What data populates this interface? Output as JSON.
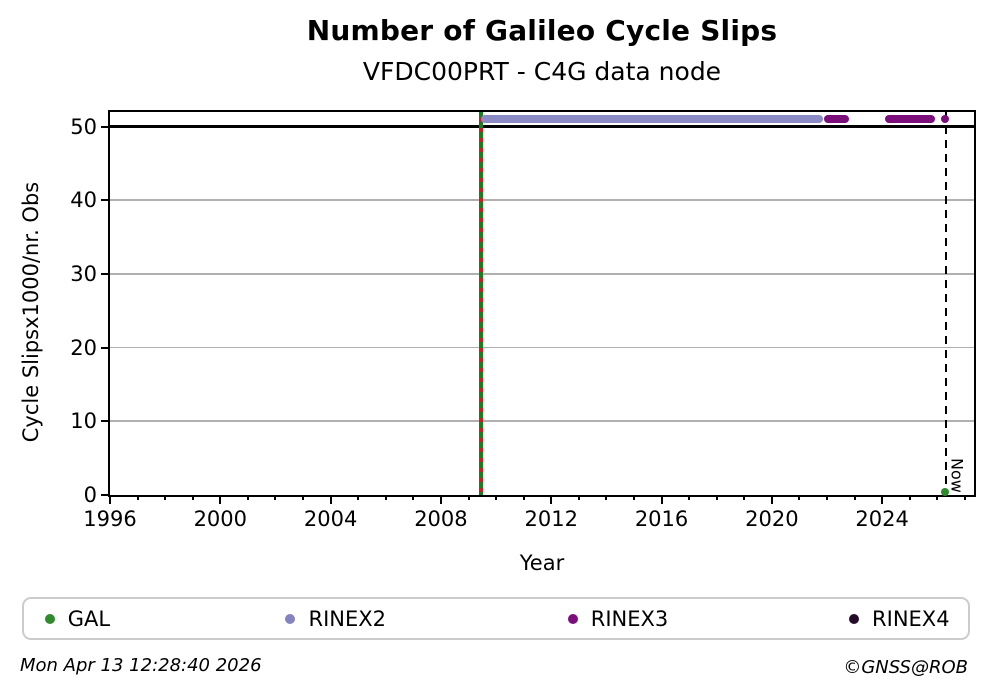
{
  "title": "Number of Galileo Cycle Slips",
  "subtitle": "VFDC00PRT - C4G data node",
  "footer": {
    "timestamp": "Mon Apr 13 12:28:40 2026",
    "credit": "©GNSS@ROB"
  },
  "legend": {
    "items": [
      {
        "label": "GAL",
        "color": "#2e8b2e"
      },
      {
        "label": "RINEX2",
        "color": "#8383c0"
      },
      {
        "label": "RINEX3",
        "color": "#7b0e7b"
      },
      {
        "label": "RINEX4",
        "color": "#260b29"
      }
    ]
  },
  "chart_data": {
    "type": "scatter",
    "title": "Number of Galileo Cycle Slips",
    "subtitle": "VFDC00PRT - C4G data node",
    "xlabel": "Year",
    "ylabel": "Cycle Slipsx1000/nr. Obs",
    "xlim": [
      1996,
      2027.33
    ],
    "ylim": [
      0,
      52
    ],
    "x_major_ticks": [
      1996,
      2000,
      2004,
      2008,
      2012,
      2016,
      2020,
      2024
    ],
    "x_minor_tick_step": 1,
    "y_ticks": [
      0,
      10,
      20,
      30,
      40,
      50
    ],
    "y_gridlines": [
      10,
      20,
      30,
      40
    ],
    "grid": "horizontal",
    "threshold_line": {
      "y": 50,
      "color": "#000000"
    },
    "event_line": {
      "x": 2009.47,
      "colors": [
        "#1a7e1a",
        "#ce1f1f"
      ],
      "style": "green-solid-with-red-dashes"
    },
    "now_line": {
      "x": 2026.3,
      "label": "Now",
      "style": "dashed",
      "color": "#000000"
    },
    "series": [
      {
        "name": "GAL",
        "color": "#2e8b2e",
        "points": [
          [
            2026.28,
            0.4
          ]
        ],
        "segments": [],
        "value": null
      },
      {
        "name": "RINEX2",
        "color": "#8a8ac4",
        "value": 51,
        "points": [],
        "segments": [
          [
            2009.47,
            2021.85
          ]
        ]
      },
      {
        "name": "RINEX3",
        "color": "#7b0e7b",
        "value": 51,
        "points": [
          [
            2026.28,
            51
          ]
        ],
        "segments": [
          [
            2021.9,
            2022.8
          ],
          [
            2024.1,
            2025.9
          ]
        ]
      },
      {
        "name": "RINEX4",
        "color": "#260b29",
        "value": null,
        "points": [],
        "segments": []
      }
    ]
  }
}
